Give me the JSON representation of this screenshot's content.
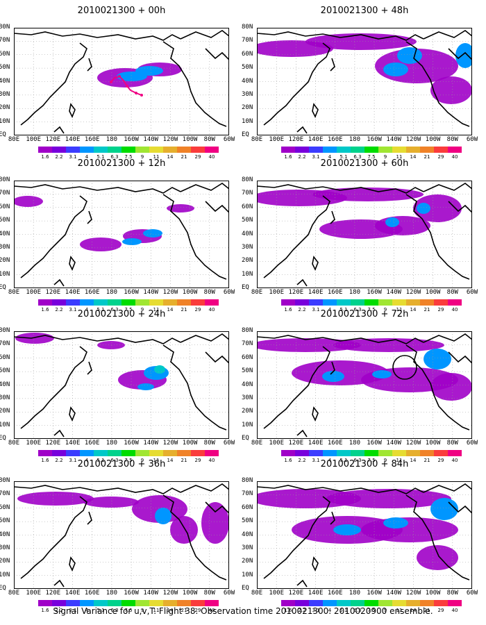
{
  "caption": "Signal Variance for u,v,T. Flight 38. Observation time 2010021300. 2010020900 ensemble.",
  "lat_labels": [
    "80N",
    "70N",
    "60N",
    "50N",
    "40N",
    "30N",
    "20N",
    "10N",
    "EQ"
  ],
  "lon_labels": [
    "80E",
    "100E",
    "120E",
    "140E",
    "160E",
    "180",
    "160W",
    "140W",
    "120W",
    "100W",
    "80W",
    "60W"
  ],
  "colorbar": {
    "labels": [
      "1.6",
      "2.2",
      "3.1",
      "4",
      "5.1",
      "6.3",
      "7.5",
      "9",
      "11",
      "14",
      "21",
      "29",
      "40"
    ],
    "colors": [
      "#a000c8",
      "#7800dc",
      "#3c3cff",
      "#0096ff",
      "#00c8c8",
      "#00d28c",
      "#00dc00",
      "#a0e632",
      "#e6dc32",
      "#e6af2d",
      "#f08228",
      "#fa3c3c",
      "#f00082"
    ]
  },
  "panels": [
    {
      "title": "2010021300 + 00h",
      "col": 0,
      "row": 0,
      "extra": "track"
    },
    {
      "title": "2010021300 + 12h",
      "col": 0,
      "row": 1,
      "extra": ""
    },
    {
      "title": "2010021300 + 24h",
      "col": 0,
      "row": 2,
      "extra": ""
    },
    {
      "title": "2010021300 + 36h",
      "col": 0,
      "row": 3,
      "extra": ""
    },
    {
      "title": "2010021300 + 48h",
      "col": 1,
      "row": 0,
      "extra": ""
    },
    {
      "title": "2010021300 + 60h",
      "col": 1,
      "row": 1,
      "extra": ""
    },
    {
      "title": "2010021300 + 72h",
      "col": 1,
      "row": 2,
      "extra": "circle"
    },
    {
      "title": "2010021300 + 84h",
      "col": 1,
      "row": 3,
      "extra": ""
    }
  ]
}
